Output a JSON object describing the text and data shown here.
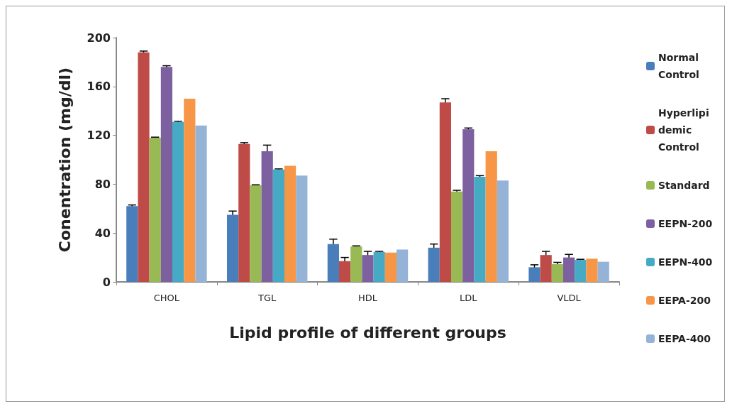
{
  "chart_data": {
    "type": "bar",
    "xlabel": "Lipid profile of different groups",
    "ylabel": "Conentration (mg/dl)",
    "categories": [
      "CHOL",
      "TGL",
      "HDL",
      "LDL",
      "VLDL"
    ],
    "ylim": [
      0,
      200
    ],
    "yticks": [
      0,
      40,
      80,
      120,
      160,
      200
    ],
    "grid": false,
    "legend": "right",
    "series": [
      {
        "name": "Normal Control",
        "color": "#4a7ebb",
        "values": [
          62,
          55,
          31,
          28,
          12
        ],
        "errors": [
          1,
          3,
          4,
          3,
          2
        ]
      },
      {
        "name": "Hyperlipidemic Control",
        "color": "#be4b48",
        "values": [
          188,
          113,
          17,
          147,
          22
        ],
        "errors": [
          1,
          1,
          3,
          3,
          3
        ]
      },
      {
        "name": "Standard",
        "color": "#98b954",
        "values": [
          118,
          79,
          29,
          74,
          14.5
        ],
        "errors": [
          0.5,
          0.5,
          0.5,
          1,
          1.5
        ]
      },
      {
        "name": "EEPN-200",
        "color": "#7d60a0",
        "values": [
          176,
          107,
          22,
          125,
          20
        ],
        "errors": [
          1,
          5,
          3,
          1,
          2.5
        ]
      },
      {
        "name": "EEPN-400",
        "color": "#46aac5",
        "values": [
          131,
          92,
          24.5,
          86,
          18
        ],
        "errors": [
          0.5,
          0.5,
          0.5,
          1,
          0.5
        ]
      },
      {
        "name": "EEPA-200",
        "color": "#f79646",
        "values": [
          150,
          95,
          24,
          107,
          19
        ],
        "errors": [
          null,
          null,
          null,
          null,
          null
        ]
      },
      {
        "name": "EEPA-400",
        "color": "#95b3d7",
        "values": [
          128,
          87,
          26.5,
          83,
          16.5
        ],
        "errors": [
          null,
          null,
          null,
          null,
          null
        ]
      }
    ]
  }
}
